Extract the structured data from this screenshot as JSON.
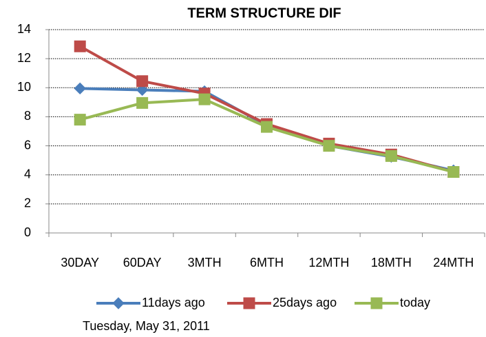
{
  "chart_data": {
    "type": "line",
    "title": "TERM STRUCTURE DIF",
    "categories": [
      "30DAY",
      "60DAY",
      "3MTH",
      "6MTH",
      "12MTH",
      "18MTH",
      "24MTH"
    ],
    "series": [
      {
        "name": "11days ago",
        "color": "#4a7ebb",
        "marker": "diamond",
        "values": [
          9.95,
          9.85,
          9.75,
          7.4,
          6.0,
          5.25,
          4.3
        ]
      },
      {
        "name": "25days ago",
        "color": "#be4b48",
        "marker": "square",
        "values": [
          12.85,
          10.45,
          9.6,
          7.5,
          6.15,
          5.4,
          4.2
        ]
      },
      {
        "name": "today",
        "color": "#98b954",
        "marker": "square",
        "values": [
          7.8,
          8.95,
          9.2,
          7.3,
          6.0,
          5.3,
          4.2
        ]
      }
    ],
    "ylim": [
      0,
      14
    ],
    "yticks": [
      0,
      2,
      4,
      6,
      8,
      10,
      12,
      14
    ],
    "grid": true,
    "legend": "bottom"
  },
  "footer": "Tuesday, May 31, 2011"
}
